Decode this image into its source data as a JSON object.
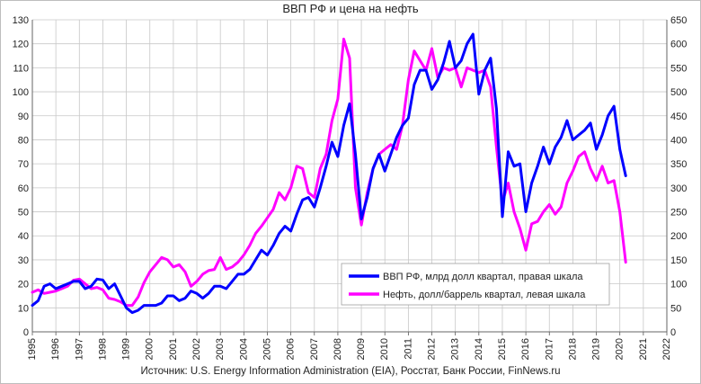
{
  "chart_data": {
    "type": "line",
    "title": "ВВП РФ и цена на нефть",
    "source": "Источник: U.S. Energy Information Administration (EIA), Росстат, Банк России, FinNews.ru",
    "x_ticks": [
      "1995",
      "1996",
      "1997",
      "1998",
      "1999",
      "2000",
      "2001",
      "2002",
      "2003",
      "2004",
      "2005",
      "2006",
      "2007",
      "2008",
      "2009",
      "2010",
      "2011",
      "2012",
      "2013",
      "2014",
      "2015",
      "2016",
      "2017",
      "2018",
      "2019",
      "2020",
      "2021",
      "2022"
    ],
    "xlim": [
      1995,
      2022
    ],
    "left_axis": {
      "ylim": [
        0,
        130
      ],
      "ticks": [
        "0",
        "10",
        "20",
        "30",
        "40",
        "50",
        "60",
        "70",
        "80",
        "90",
        "100",
        "110",
        "120",
        "130"
      ]
    },
    "right_axis": {
      "ylim": [
        0,
        650
      ],
      "ticks": [
        "0",
        "50",
        "100",
        "150",
        "200",
        "250",
        "300",
        "350",
        "400",
        "450",
        "500",
        "550",
        "600",
        "650"
      ]
    },
    "grid": true,
    "legend_position": "bottom-right",
    "series": [
      {
        "name": "ВВП РФ, млрд долл квартал, правая шкала",
        "axis": "right",
        "color": "#0000ff",
        "x": [
          1995.0,
          1995.25,
          1995.5,
          1995.75,
          1996.0,
          1996.25,
          1996.5,
          1996.75,
          1997.0,
          1997.25,
          1997.5,
          1997.75,
          1998.0,
          1998.25,
          1998.5,
          1998.75,
          1999.0,
          1999.25,
          1999.5,
          1999.75,
          2000.0,
          2000.25,
          2000.5,
          2000.75,
          2001.0,
          2001.25,
          2001.5,
          2001.75,
          2002.0,
          2002.25,
          2002.5,
          2002.75,
          2003.0,
          2003.25,
          2003.5,
          2003.75,
          2004.0,
          2004.25,
          2004.5,
          2004.75,
          2005.0,
          2005.25,
          2005.5,
          2005.75,
          2006.0,
          2006.25,
          2006.5,
          2006.75,
          2007.0,
          2007.25,
          2007.5,
          2007.75,
          2008.0,
          2008.25,
          2008.5,
          2008.75,
          2009.0,
          2009.25,
          2009.5,
          2009.75,
          2010.0,
          2010.25,
          2010.5,
          2010.75,
          2011.0,
          2011.25,
          2011.5,
          2011.75,
          2012.0,
          2012.25,
          2012.5,
          2012.75,
          2013.0,
          2013.25,
          2013.5,
          2013.75,
          2014.0,
          2014.25,
          2014.5,
          2014.75,
          2015.0,
          2015.25,
          2015.5,
          2015.75,
          2016.0,
          2016.25,
          2016.5,
          2016.75,
          2017.0,
          2017.25,
          2017.5,
          2017.75,
          2018.0,
          2018.25,
          2018.5,
          2018.75,
          2019.0,
          2019.25,
          2019.5,
          2019.75,
          2020.0,
          2020.25
        ],
        "values": [
          55,
          65,
          95,
          100,
          90,
          95,
          100,
          105,
          105,
          90,
          95,
          110,
          108,
          90,
          100,
          75,
          50,
          40,
          45,
          55,
          55,
          55,
          60,
          75,
          75,
          65,
          70,
          85,
          80,
          70,
          80,
          95,
          95,
          90,
          105,
          120,
          120,
          130,
          150,
          170,
          160,
          180,
          205,
          220,
          210,
          245,
          275,
          280,
          260,
          300,
          345,
          395,
          365,
          430,
          475,
          370,
          235,
          280,
          340,
          370,
          335,
          370,
          405,
          430,
          445,
          515,
          545,
          545,
          505,
          525,
          560,
          605,
          550,
          565,
          600,
          620,
          495,
          545,
          570,
          465,
          240,
          375,
          345,
          350,
          250,
          310,
          345,
          385,
          350,
          385,
          405,
          440,
          400,
          410,
          420,
          435,
          380,
          410,
          450,
          470,
          380,
          325
        ]
      },
      {
        "name": "Нефть, долл/баррель квартал, левая шкала",
        "axis": "left",
        "color": "#ff00ff",
        "x": [
          1995.0,
          1995.25,
          1995.5,
          1995.75,
          1996.0,
          1996.25,
          1996.5,
          1996.75,
          1997.0,
          1997.25,
          1997.5,
          1997.75,
          1998.0,
          1998.25,
          1998.5,
          1998.75,
          1999.0,
          1999.25,
          1999.5,
          1999.75,
          2000.0,
          2000.25,
          2000.5,
          2000.75,
          2001.0,
          2001.25,
          2001.5,
          2001.75,
          2002.0,
          2002.25,
          2002.5,
          2002.75,
          2003.0,
          2003.25,
          2003.5,
          2003.75,
          2004.0,
          2004.25,
          2004.5,
          2004.75,
          2005.0,
          2005.25,
          2005.5,
          2005.75,
          2006.0,
          2006.25,
          2006.5,
          2006.75,
          2007.0,
          2007.25,
          2007.5,
          2007.75,
          2008.0,
          2008.25,
          2008.5,
          2008.75,
          2009.0,
          2009.25,
          2009.5,
          2009.75,
          2010.0,
          2010.25,
          2010.5,
          2010.75,
          2011.0,
          2011.25,
          2011.5,
          2011.75,
          2012.0,
          2012.25,
          2012.5,
          2012.75,
          2013.0,
          2013.25,
          2013.5,
          2013.75,
          2014.0,
          2014.25,
          2014.5,
          2014.75,
          2015.0,
          2015.25,
          2015.5,
          2015.75,
          2016.0,
          2016.25,
          2016.5,
          2016.75,
          2017.0,
          2017.25,
          2017.5,
          2017.75,
          2018.0,
          2018.25,
          2018.5,
          2018.75,
          2019.0,
          2019.25,
          2019.5,
          2019.75,
          2020.0,
          2020.25
        ],
        "values": [
          16.5,
          17.5,
          16,
          16.5,
          17,
          18,
          19,
          21.5,
          22,
          20,
          18,
          18.5,
          17.5,
          14,
          13.5,
          12.5,
          11,
          11,
          14.5,
          20.5,
          25,
          28,
          31,
          30,
          27,
          28,
          25,
          19,
          21,
          24,
          25.5,
          26,
          31,
          26,
          27,
          29,
          32,
          36,
          41,
          44,
          47.5,
          51,
          58,
          55,
          60,
          69,
          68,
          58,
          56,
          68,
          74,
          88,
          97,
          122,
          114,
          60,
          44.5,
          58,
          68,
          74,
          76,
          78,
          76,
          86,
          105,
          117,
          113,
          109,
          118,
          106,
          110,
          109,
          110,
          102,
          110,
          109,
          108,
          109,
          102,
          77,
          54,
          62,
          50,
          43,
          34,
          45,
          46,
          50,
          53,
          49,
          52,
          62,
          67,
          73,
          75,
          68,
          63,
          69,
          62,
          63,
          50,
          29
        ]
      }
    ]
  }
}
